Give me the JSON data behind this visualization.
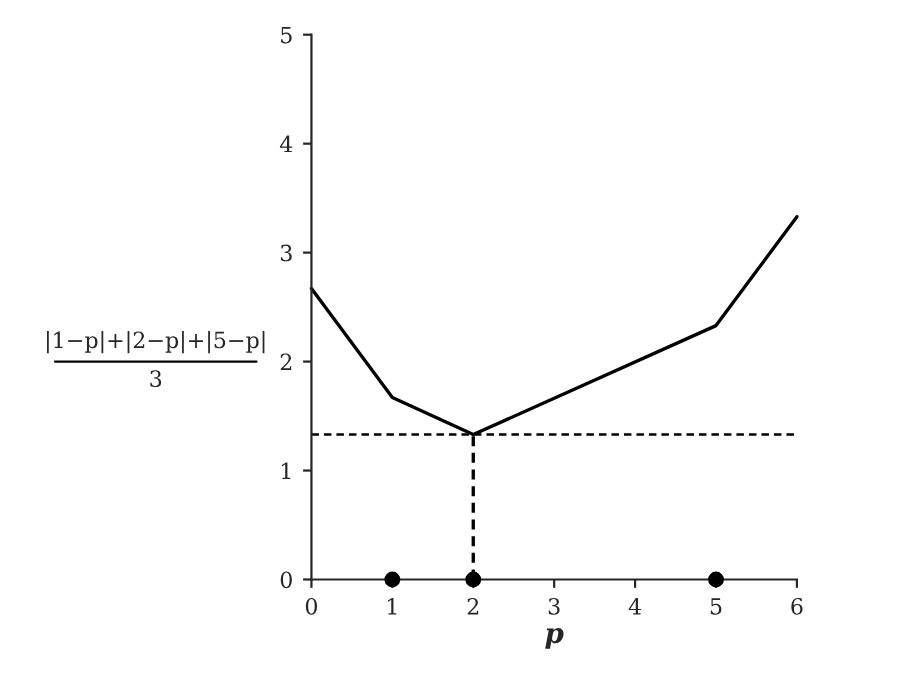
{
  "chart_data": {
    "type": "line",
    "xlabel": "p",
    "ylabel": "|1−p|+|2−p|+|5−p|\n3",
    "xlim": [
      0,
      6
    ],
    "ylim": [
      0,
      5
    ],
    "xticks": [
      0,
      1,
      2,
      3,
      4,
      5,
      6
    ],
    "yticks": [
      0,
      1,
      2,
      3,
      4,
      5
    ],
    "grid": false,
    "series": [
      {
        "color": "#000000",
        "x": [
          0,
          1,
          2,
          5,
          6
        ],
        "values": [
          2.67,
          1.67,
          1.33,
          2.33,
          3.33
        ],
        "line_style": "solid",
        "marker": "none"
      },
      {
        "type": "line",
        "color": "#000000",
        "x": [
          2,
          2
        ],
        "values": [
          0,
          1.33
        ],
        "line_style": "dashed",
        "marker": "none"
      },
      {
        "type": "scatter",
        "color": "#000000",
        "x": [
          1,
          2,
          5
        ],
        "values": [
          0,
          0,
          0
        ],
        "marker": "circle"
      }
    ],
    "ref_lines": [
      {
        "axis": "y",
        "value": 1.33,
        "color": "#000000",
        "line_style": "dashed"
      }
    ]
  }
}
